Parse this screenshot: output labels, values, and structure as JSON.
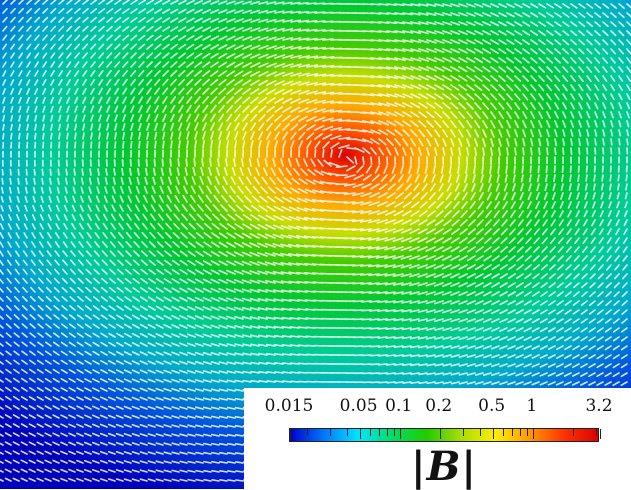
{
  "figure": {
    "colorbar": {
      "title": "|B|",
      "colormap": "rainbow",
      "colors": [
        "#0000cc",
        "#0077ff",
        "#00e5ff",
        "#00dd66",
        "#22cc00",
        "#aadd00",
        "#ffee00",
        "#ff9900",
        "#ff3300",
        "#dd0000"
      ],
      "scale": "log",
      "range": [
        0.015,
        3.2
      ],
      "ticks": [
        {
          "label": "0.015",
          "value": 0.015
        },
        {
          "label": "0.05",
          "value": 0.05
        },
        {
          "label": "0.1",
          "value": 0.1
        },
        {
          "label": "0.2",
          "value": 0.2
        },
        {
          "label": "0.5",
          "value": 0.5
        },
        {
          "label": "1",
          "value": 1
        },
        {
          "label": "3.2",
          "value": 3.2
        }
      ]
    },
    "field_plot": {
      "description_visible": false,
      "glyph_color": "#ffffff",
      "background_low": "#0000cc",
      "peak_color": "#dd0000"
    }
  }
}
